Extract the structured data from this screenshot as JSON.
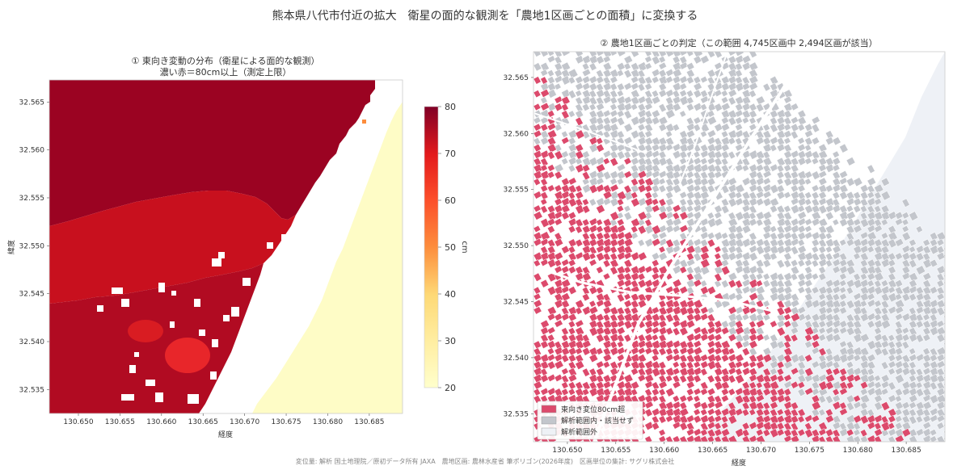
{
  "figure": {
    "suptitle": "熊本県八代市付近の拡大　衛星の面的な観測を「農地1区画ごとの面積」に変換する",
    "footer": "変位量: 解析 国土地理院／原初データ所有 JAXA　農地区画: 農林水産省 筆ポリゴン(2026年度)　区画単位の集計: サグリ株式会社"
  },
  "chart_data": [
    {
      "type": "heatmap",
      "title": "① 東向き変動の分布（衛星による面的な観測）",
      "subtitle": "濃い赤＝80cm以上（測定上限）",
      "xlabel": "経度",
      "ylabel": "緯度",
      "xlim": [
        130.6465,
        130.689
      ],
      "ylim": [
        32.5325,
        32.5673
      ],
      "xticks": [
        "130.650",
        "130.655",
        "130.660",
        "130.665",
        "130.670",
        "130.675",
        "130.680",
        "130.685"
      ],
      "yticks": [
        "32.535",
        "32.540",
        "32.545",
        "32.550",
        "32.555",
        "32.560",
        "32.565"
      ],
      "colorbar": {
        "label": "cm",
        "min": 20,
        "max": 80,
        "ticks": [
          "20",
          "30",
          "40",
          "50",
          "60",
          "70",
          "80"
        ]
      },
      "colors": {
        "low": "#ffffcc",
        "mid": "#fd8d3c",
        "high": "#800026"
      }
    },
    {
      "type": "map",
      "title": "② 農地1区画ごとの判定（この範囲 4,745区画中 2,494区画が該当）",
      "xlabel": "経度",
      "ylabel": "",
      "xlim": [
        130.6465,
        130.689
      ],
      "ylim": [
        32.5325,
        32.5673
      ],
      "xticks": [
        "130.650",
        "130.655",
        "130.660",
        "130.665",
        "130.670",
        "130.675",
        "130.680",
        "130.685"
      ],
      "yticks": [
        "32.535",
        "32.540",
        "32.545",
        "32.550",
        "32.555",
        "32.560",
        "32.565"
      ],
      "total_parcels": 4745,
      "matching_parcels": 2494,
      "legend_position": "lower-left",
      "legend": [
        {
          "label": "東向き変位80cm超",
          "color": "#dc4a6c"
        },
        {
          "label": "解析範囲内・該当せず",
          "color": "#c3c6cc"
        },
        {
          "label": "解析範囲外",
          "color": "#eef1f6"
        }
      ]
    }
  ]
}
